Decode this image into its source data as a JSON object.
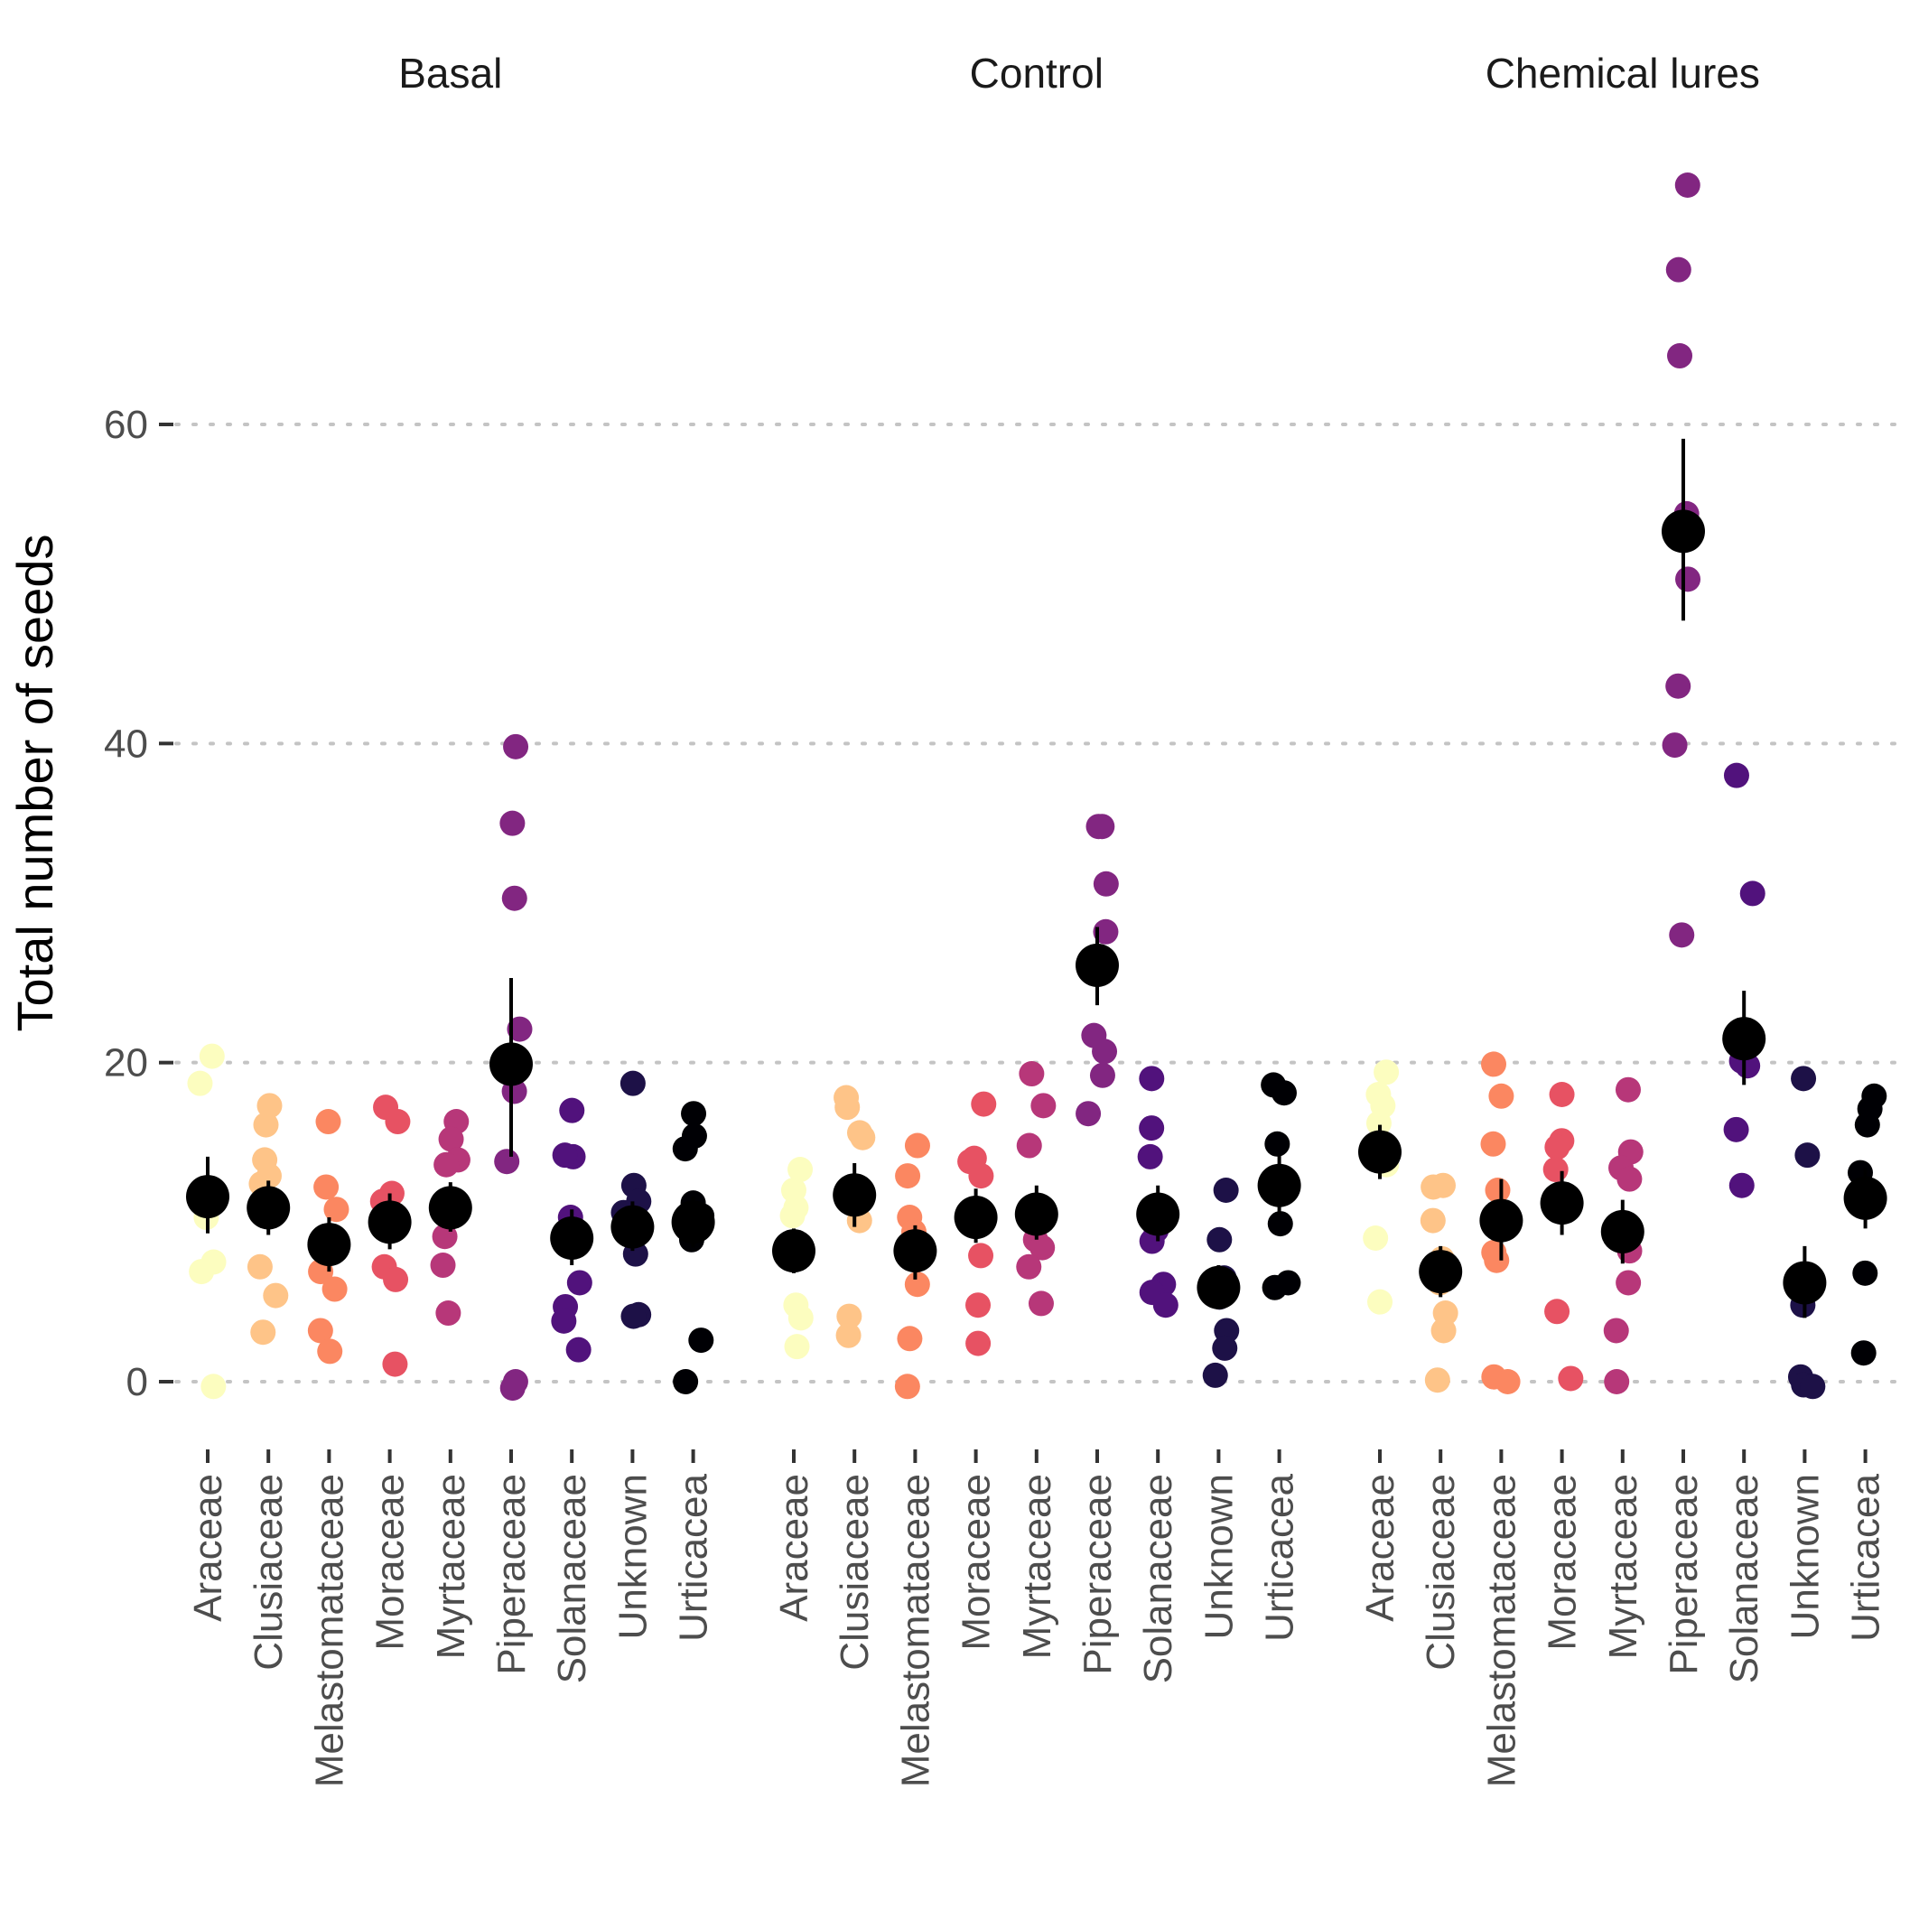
{
  "chart_data": {
    "type": "scatter",
    "ylabel": "Total number of seeds",
    "ylim": [
      -3,
      75
    ],
    "yticks": [
      0,
      20,
      40,
      60
    ],
    "grid": {
      "horizontal": true,
      "vertical": false
    },
    "legend": "none",
    "categories": [
      "Araceae",
      "Clusiaceae",
      "Melastomataceae",
      "Moraceae",
      "Myrtaceae",
      "Piperaceae",
      "Solanaceae",
      "Unknown",
      "Urticacea"
    ],
    "colors": {
      "Araceae": "#fcfdbf",
      "Clusiaceae": "#fec488",
      "Melastomataceae": "#fb8761",
      "Moraceae": "#e75263",
      "Myrtaceae": "#b73779",
      "Piperaceae": "#822681",
      "Solanaceae": "#51127c",
      "Unknown": "#1d1147",
      "Urticacea": "#000004",
      "summary": "#000000"
    },
    "facets": [
      {
        "title": "Basal",
        "groups": [
          {
            "category": "Araceae",
            "mean": 11.6,
            "lower": 9.3,
            "upper": 14.1,
            "points": [
              20.4,
              18.7,
              10.3,
              7.5,
              6.9,
              -0.3
            ]
          },
          {
            "category": "Clusiaceae",
            "mean": 10.9,
            "lower": 9.2,
            "upper": 12.6,
            "points": [
              17.3,
              16.1,
              13.9,
              12.9,
              12.4,
              7.2,
              5.4,
              3.1
            ]
          },
          {
            "category": "Melastomataceae",
            "mean": 8.6,
            "lower": 6.9,
            "upper": 10.3,
            "points": [
              16.3,
              12.2,
              10.8,
              6.9,
              5.8,
              3.2,
              1.9
            ]
          },
          {
            "category": "Moraceae",
            "mean": 10.0,
            "lower": 8.3,
            "upper": 11.8,
            "points": [
              17.2,
              16.3,
              11.8,
              11.3,
              7.2,
              6.4,
              1.1
            ]
          },
          {
            "category": "Myrtaceae",
            "mean": 10.9,
            "lower": 9.4,
            "upper": 12.5,
            "points": [
              16.3,
              15.2,
              13.9,
              13.6,
              9.1,
              7.3,
              4.3
            ]
          },
          {
            "category": "Piperaceae",
            "mean": 19.9,
            "lower": 14.1,
            "upper": 25.3,
            "points": [
              39.8,
              35.0,
              30.3,
              22.1,
              18.2,
              13.8,
              0.0,
              -0.4
            ]
          },
          {
            "category": "Solanaceae",
            "mean": 9.0,
            "lower": 7.3,
            "upper": 10.8,
            "points": [
              17.0,
              14.1,
              14.2,
              10.3,
              6.2,
              4.7,
              3.8,
              2.0
            ]
          },
          {
            "category": "Unknown",
            "mean": 9.7,
            "lower": 8.2,
            "upper": 11.3,
            "points": [
              18.7,
              12.3,
              11.3,
              10.6,
              9.5,
              8.0,
              4.2,
              4.1
            ]
          },
          {
            "category": "Urticacea",
            "mean": 10.0,
            "lower": 8.4,
            "upper": 11.6,
            "points": [
              16.8,
              15.4,
              14.6,
              11.2,
              10.4,
              8.9,
              2.6,
              0.0
            ]
          }
        ]
      },
      {
        "title": "Control",
        "groups": [
          {
            "category": "Araceae",
            "mean": 8.2,
            "lower": 6.8,
            "upper": 9.6,
            "points": [
              13.3,
              12.0,
              10.9,
              10.4,
              4.8,
              4.0,
              2.2
            ]
          },
          {
            "category": "Clusiaceae",
            "mean": 11.7,
            "lower": 9.7,
            "upper": 13.7,
            "points": [
              17.8,
              17.2,
              15.6,
              15.3,
              10.1,
              4.1,
              2.9
            ]
          },
          {
            "category": "Melastomataceae",
            "mean": 8.2,
            "lower": 6.4,
            "upper": 9.8,
            "points": [
              14.8,
              12.9,
              10.3,
              9.4,
              6.1,
              2.7,
              -0.3
            ]
          },
          {
            "category": "Moraceae",
            "mean": 10.3,
            "lower": 8.7,
            "upper": 12.1,
            "points": [
              17.4,
              14.0,
              13.8,
              12.9,
              7.9,
              4.8,
              2.4
            ]
          },
          {
            "category": "Myrtaceae",
            "mean": 10.5,
            "lower": 8.9,
            "upper": 12.3,
            "points": [
              19.3,
              17.3,
              14.8,
              8.9,
              8.4,
              7.2,
              4.9
            ]
          },
          {
            "category": "Piperaceae",
            "mean": 26.1,
            "lower": 23.6,
            "upper": 28.5,
            "points": [
              34.8,
              34.8,
              31.2,
              28.2,
              21.7,
              20.7,
              19.2,
              16.8
            ]
          },
          {
            "category": "Solanaceae",
            "mean": 10.5,
            "lower": 8.8,
            "upper": 12.3,
            "points": [
              19.0,
              15.9,
              14.1,
              9.5,
              8.8,
              6.1,
              5.6,
              4.8
            ]
          },
          {
            "category": "Unknown",
            "mean": 5.9,
            "lower": 4.6,
            "upper": 7.3,
            "points": [
              12.0,
              8.9,
              6.5,
              5.3,
              3.2,
              2.1,
              0.4
            ]
          },
          {
            "category": "Urticacea",
            "mean": 12.3,
            "lower": 10.5,
            "upper": 14.2,
            "points": [
              18.6,
              18.1,
              14.9,
              9.9,
              6.2,
              5.9
            ]
          }
        ]
      },
      {
        "title": "Chemical lures",
        "groups": [
          {
            "category": "Araceae",
            "mean": 14.4,
            "lower": 12.7,
            "upper": 16.1,
            "points": [
              19.4,
              18.0,
              17.3,
              16.2,
              13.6,
              9.0,
              5.0
            ]
          },
          {
            "category": "Clusiaceae",
            "mean": 6.9,
            "lower": 5.3,
            "upper": 8.5,
            "points": [
              12.3,
              12.2,
              10.1,
              7.7,
              6.2,
              4.3,
              3.2,
              0.1
            ]
          },
          {
            "category": "Melastomataceae",
            "mean": 10.1,
            "lower": 7.6,
            "upper": 12.7,
            "points": [
              19.9,
              17.9,
              14.9,
              12.0,
              8.1,
              7.6,
              0.3,
              0.0
            ]
          },
          {
            "category": "Moraceae",
            "mean": 11.2,
            "lower": 9.2,
            "upper": 13.2,
            "points": [
              18.0,
              15.1,
              14.7,
              13.3,
              4.4,
              0.2
            ]
          },
          {
            "category": "Myrtaceae",
            "mean": 9.4,
            "lower": 7.4,
            "upper": 11.4,
            "points": [
              18.3,
              14.4,
              13.4,
              12.7,
              8.2,
              6.2,
              3.2,
              0.0
            ]
          },
          {
            "category": "Piperaceae",
            "mean": 53.3,
            "lower": 47.7,
            "upper": 59.1,
            "points": [
              75.0,
              69.7,
              64.3,
              54.4,
              50.3,
              43.6,
              39.9,
              28.0
            ]
          },
          {
            "category": "Solanaceae",
            "mean": 21.5,
            "lower": 18.6,
            "upper": 24.5,
            "points": [
              38.0,
              30.6,
              20.1,
              19.8,
              15.8,
              12.3
            ]
          },
          {
            "category": "Unknown",
            "mean": 6.2,
            "lower": 4.0,
            "upper": 8.5,
            "points": [
              19.0,
              14.2,
              4.8,
              0.3,
              -0.2,
              -0.3
            ]
          },
          {
            "category": "Urticacea",
            "mean": 11.5,
            "lower": 9.6,
            "upper": 13.4,
            "points": [
              17.9,
              17.1,
              16.1,
              13.1,
              11.7,
              6.8,
              1.8
            ]
          }
        ]
      }
    ]
  }
}
